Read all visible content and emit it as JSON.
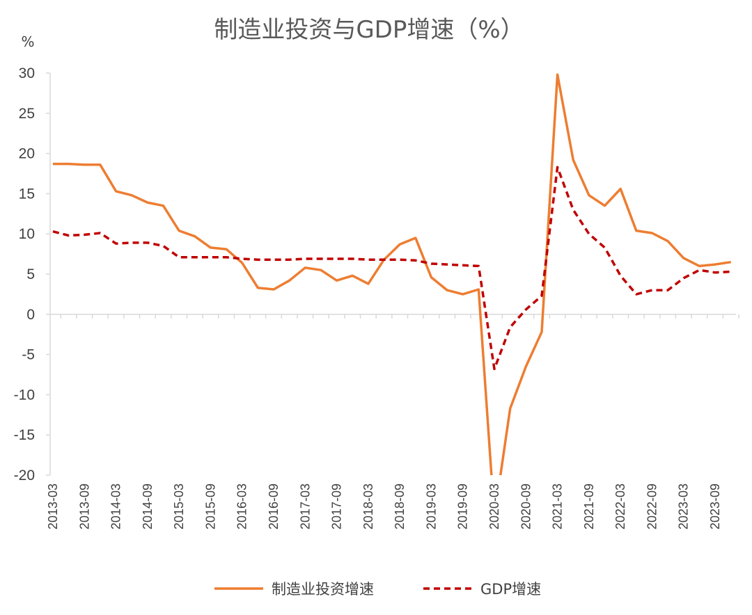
{
  "chart_data": {
    "type": "line",
    "title": "制造业投资与GDP增速（%）",
    "unit_label": "%",
    "ylim": [
      -20,
      30
    ],
    "yticks": [
      30,
      25,
      20,
      15,
      10,
      5,
      0,
      -5,
      -10,
      -15,
      -20
    ],
    "grid": false,
    "legend_position": "bottom",
    "x": [
      "2013-03",
      "2013-06",
      "2013-09",
      "2013-12",
      "2014-03",
      "2014-06",
      "2014-09",
      "2014-12",
      "2015-03",
      "2015-06",
      "2015-09",
      "2015-12",
      "2016-03",
      "2016-06",
      "2016-09",
      "2016-12",
      "2017-03",
      "2017-06",
      "2017-09",
      "2017-12",
      "2018-03",
      "2018-06",
      "2018-09",
      "2018-12",
      "2019-03",
      "2019-06",
      "2019-09",
      "2019-12",
      "2020-03",
      "2020-06",
      "2020-09",
      "2020-12",
      "2021-03",
      "2021-06",
      "2021-09",
      "2021-12",
      "2022-03",
      "2022-06",
      "2022-09",
      "2022-12",
      "2023-03",
      "2023-06",
      "2023-09",
      "2023-12"
    ],
    "xtick_labels": [
      "2013-03",
      "2013-09",
      "2014-03",
      "2014-09",
      "2015-03",
      "2015-09",
      "2016-03",
      "2016-09",
      "2017-03",
      "2017-09",
      "2018-03",
      "2018-09",
      "2019-03",
      "2019-09",
      "2020-03",
      "2020-09",
      "2021-03",
      "2021-09",
      "2022-03",
      "2022-09",
      "2023-03",
      "2023-09"
    ],
    "series": [
      {
        "name": "制造业投资增速",
        "color": "#ED7D31",
        "style": "solid",
        "values": [
          18.7,
          18.7,
          18.6,
          18.6,
          15.3,
          14.8,
          13.9,
          13.5,
          10.4,
          9.7,
          8.3,
          8.1,
          6.4,
          3.3,
          3.1,
          4.2,
          5.8,
          5.5,
          4.2,
          4.8,
          3.8,
          6.8,
          8.7,
          9.5,
          4.6,
          3.0,
          2.5,
          3.1,
          -25.2,
          -11.7,
          -6.5,
          -2.2,
          29.8,
          19.2,
          14.8,
          13.5,
          15.6,
          10.4,
          10.1,
          9.1,
          7.0,
          6.0,
          6.2,
          6.5
        ]
      },
      {
        "name": "GDP增速",
        "color": "#C00000",
        "style": "dashed",
        "values": [
          10.3,
          9.8,
          9.9,
          10.1,
          8.8,
          8.9,
          8.9,
          8.5,
          7.1,
          7.1,
          7.1,
          7.1,
          6.9,
          6.8,
          6.8,
          6.8,
          6.9,
          6.9,
          6.9,
          6.9,
          6.8,
          6.8,
          6.8,
          6.7,
          6.3,
          6.2,
          6.1,
          6.0,
          -6.8,
          -1.6,
          0.6,
          2.3,
          18.3,
          13.0,
          10.0,
          8.3,
          4.8,
          2.5,
          3.0,
          3.0,
          4.5,
          5.5,
          5.2,
          5.3
        ]
      }
    ]
  }
}
